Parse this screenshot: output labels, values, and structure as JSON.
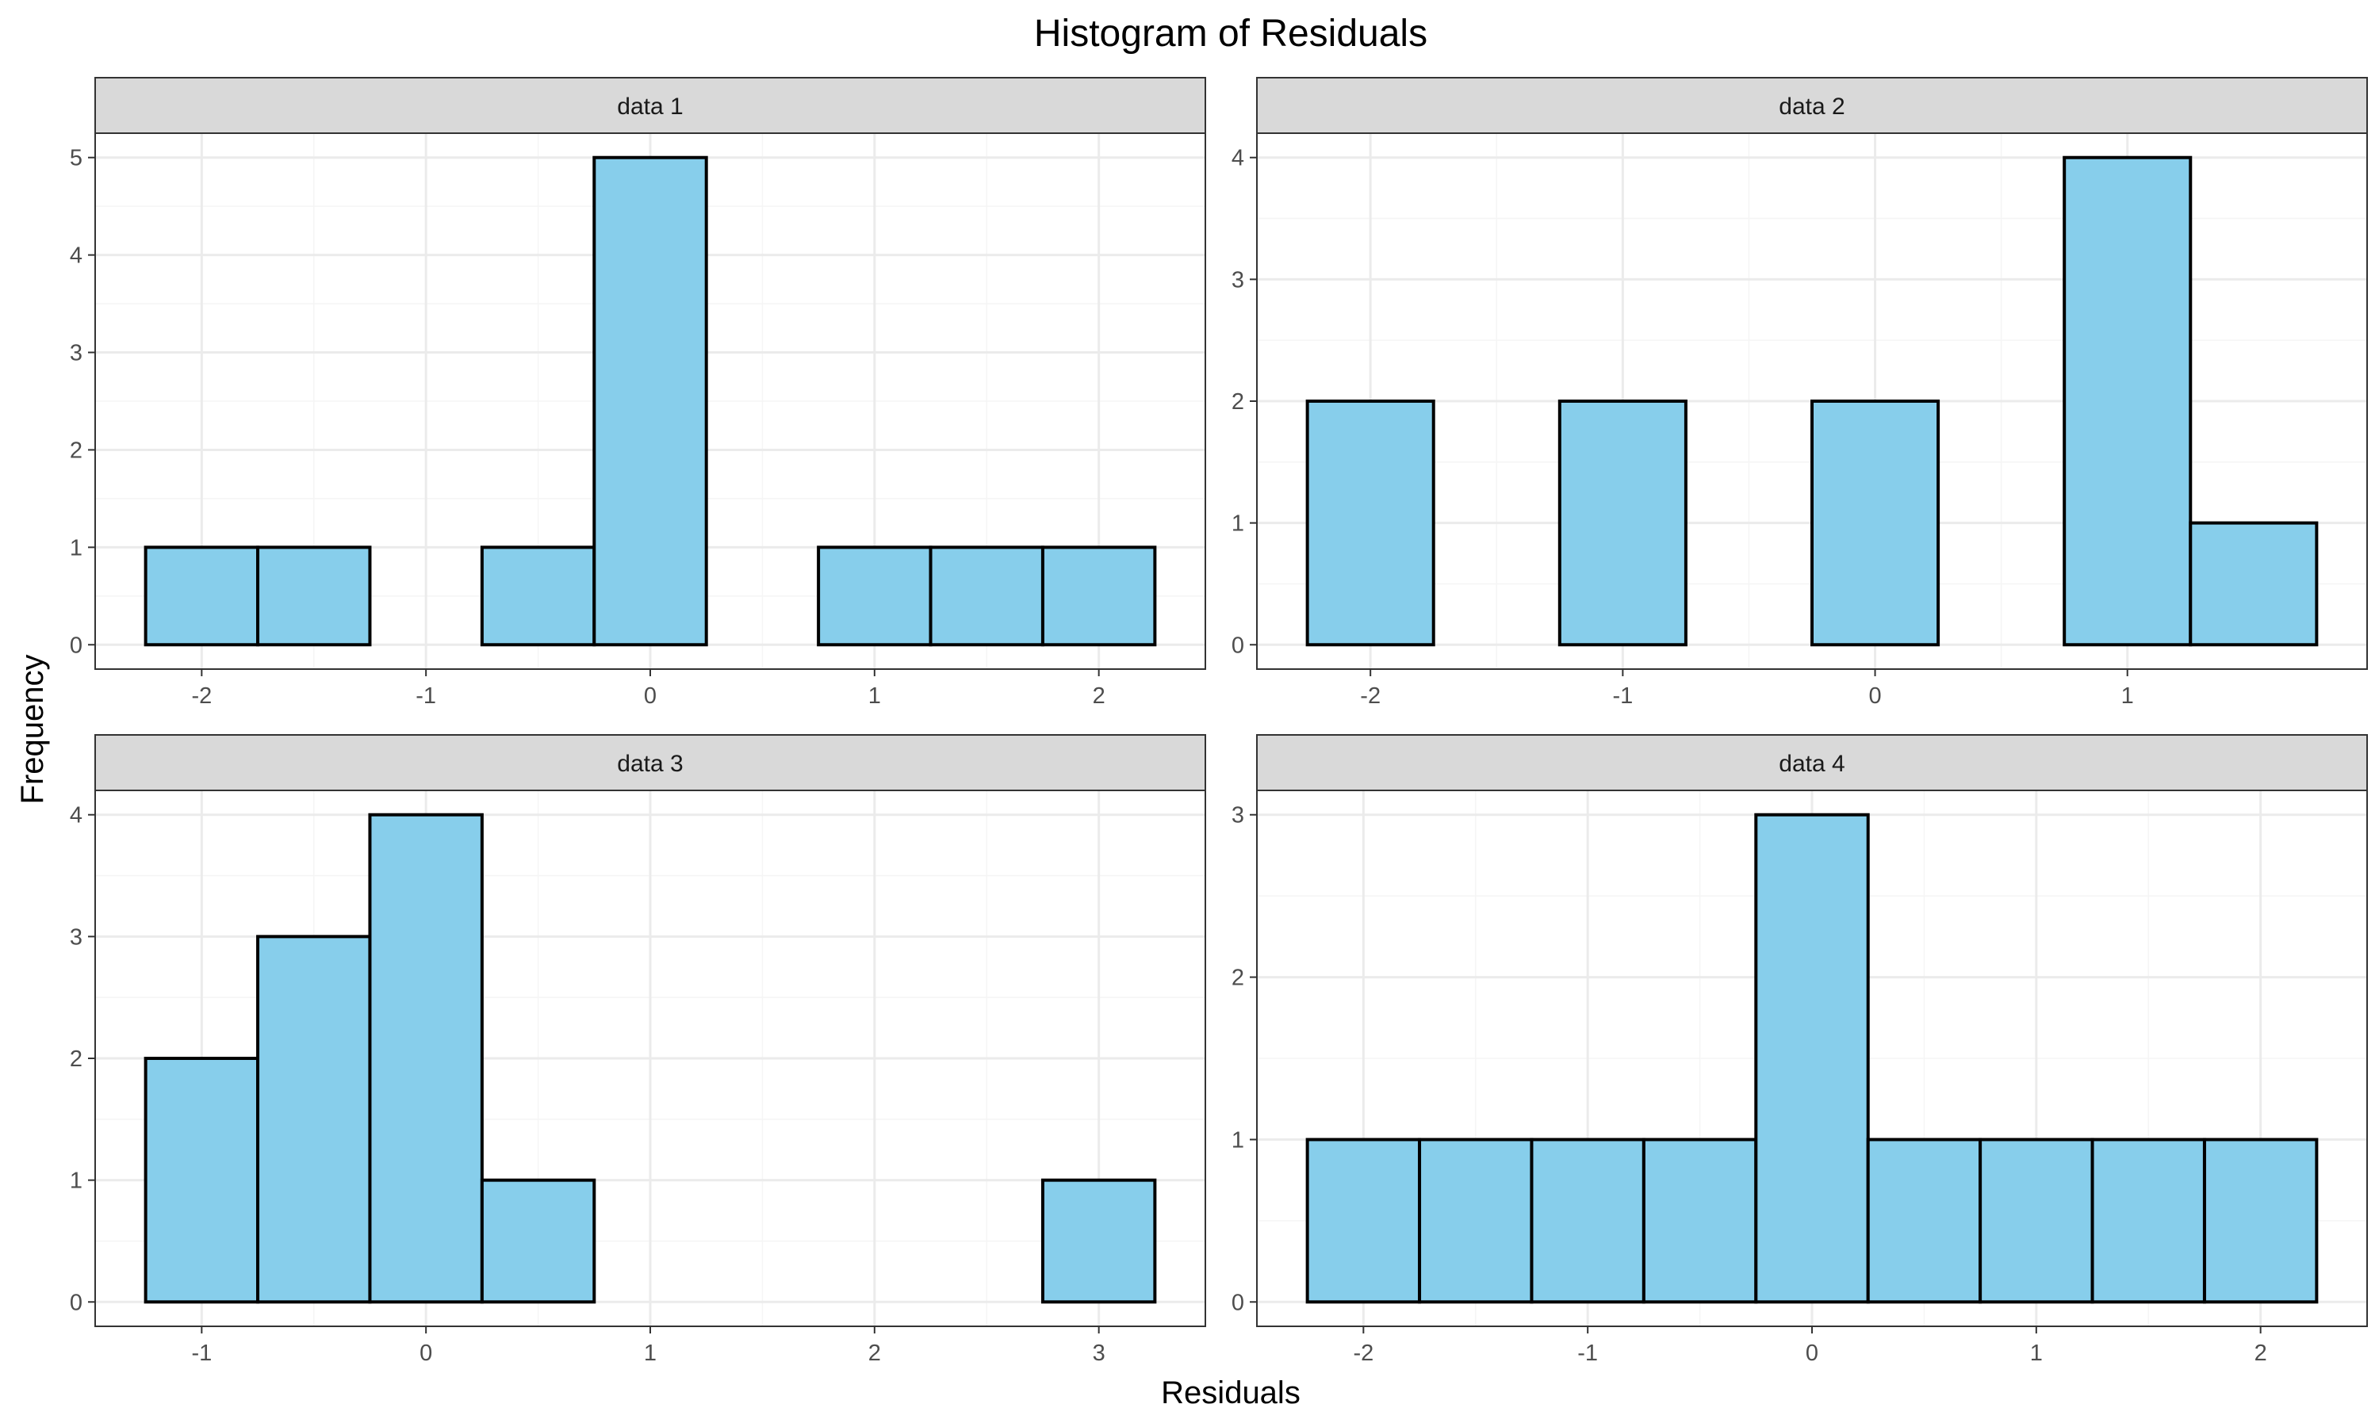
{
  "figure": {
    "title": "Histogram of Residuals",
    "xlabel": "Residuals",
    "ylabel": "Frequency",
    "colors": {
      "bar_fill": "#87CEEB",
      "bar_stroke": "#000000",
      "strip_fill": "#D9D9D9",
      "grid_major": "#EBEBEB",
      "grid_minor": "#F5F5F5",
      "panel_border": "#333333",
      "tick_text": "#4D4D4D"
    }
  },
  "chart_data": [
    {
      "type": "bar",
      "panel": "data 1",
      "bin_width": 0.5,
      "bins": [
        {
          "x0": -2.25,
          "x1": -1.75,
          "count": 1
        },
        {
          "x0": -1.75,
          "x1": -1.25,
          "count": 1
        },
        {
          "x0": -1.25,
          "x1": -0.75,
          "count": 0
        },
        {
          "x0": -0.75,
          "x1": -0.25,
          "count": 1
        },
        {
          "x0": -0.25,
          "x1": 0.25,
          "count": 5
        },
        {
          "x0": 0.25,
          "x1": 0.75,
          "count": 0
        },
        {
          "x0": 0.75,
          "x1": 1.25,
          "count": 1
        },
        {
          "x0": 1.25,
          "x1": 1.75,
          "count": 1
        },
        {
          "x0": 1.75,
          "x1": 2.25,
          "count": 1
        }
      ],
      "xlim": [
        -2.475,
        2.475
      ],
      "ylim": [
        -0.25,
        5.25
      ],
      "x_ticks": [
        -2,
        -1,
        0,
        1,
        2
      ],
      "x_tick_labels": [
        "-2",
        "-1",
        "0",
        "1",
        "2"
      ],
      "y_ticks": [
        0,
        1,
        2,
        3,
        4,
        5
      ],
      "y_tick_labels": [
        "0",
        "1",
        "2",
        "3",
        "4",
        "5"
      ],
      "grid": true
    },
    {
      "type": "bar",
      "panel": "data 2",
      "bin_width": 0.5,
      "bins": [
        {
          "x0": -2.25,
          "x1": -1.75,
          "count": 2
        },
        {
          "x0": -1.75,
          "x1": -1.25,
          "count": 0
        },
        {
          "x0": -1.25,
          "x1": -0.75,
          "count": 2
        },
        {
          "x0": -0.75,
          "x1": -0.25,
          "count": 0
        },
        {
          "x0": -0.25,
          "x1": 0.25,
          "count": 2
        },
        {
          "x0": 0.25,
          "x1": 0.75,
          "count": 0
        },
        {
          "x0": 0.75,
          "x1": 1.25,
          "count": 4
        },
        {
          "x0": 1.25,
          "x1": 1.75,
          "count": 1
        }
      ],
      "xlim": [
        -2.45,
        1.95
      ],
      "ylim": [
        -0.2,
        4.2
      ],
      "x_ticks": [
        -2,
        -1,
        0,
        1
      ],
      "x_tick_labels": [
        "-2",
        "-1",
        "0",
        "1"
      ],
      "y_ticks": [
        0,
        1,
        2,
        3,
        4
      ],
      "y_tick_labels": [
        "0",
        "1",
        "2",
        "3",
        "4"
      ],
      "grid": true
    },
    {
      "type": "bar",
      "panel": "data 3",
      "bin_width": 0.5,
      "bins": [
        {
          "x0": -1.25,
          "x1": -0.75,
          "count": 2
        },
        {
          "x0": -0.75,
          "x1": -0.25,
          "count": 3
        },
        {
          "x0": -0.25,
          "x1": 0.25,
          "count": 4
        },
        {
          "x0": 0.25,
          "x1": 0.75,
          "count": 1
        },
        {
          "x0": 0.75,
          "x1": 1.25,
          "count": 0
        },
        {
          "x0": 1.25,
          "x1": 1.75,
          "count": 0
        },
        {
          "x0": 1.75,
          "x1": 2.25,
          "count": 0
        },
        {
          "x0": 2.25,
          "x1": 2.75,
          "count": 0
        },
        {
          "x0": 2.75,
          "x1": 3.25,
          "count": 1
        }
      ],
      "xlim": [
        -1.475,
        3.475
      ],
      "ylim": [
        -0.2,
        4.2
      ],
      "x_ticks": [
        -1,
        0,
        1,
        2,
        3
      ],
      "x_tick_labels": [
        "-1",
        "0",
        "1",
        "2",
        "3"
      ],
      "y_ticks": [
        0,
        1,
        2,
        3,
        4
      ],
      "y_tick_labels": [
        "0",
        "1",
        "2",
        "3",
        "4"
      ],
      "grid": true
    },
    {
      "type": "bar",
      "panel": "data 4",
      "bin_width": 0.5,
      "bins": [
        {
          "x0": -2.25,
          "x1": -1.75,
          "count": 1
        },
        {
          "x0": -1.75,
          "x1": -1.25,
          "count": 1
        },
        {
          "x0": -1.25,
          "x1": -0.75,
          "count": 1
        },
        {
          "x0": -0.75,
          "x1": -0.25,
          "count": 1
        },
        {
          "x0": -0.25,
          "x1": 0.25,
          "count": 3
        },
        {
          "x0": 0.25,
          "x1": 0.75,
          "count": 1
        },
        {
          "x0": 0.75,
          "x1": 1.25,
          "count": 1
        },
        {
          "x0": 1.25,
          "x1": 1.75,
          "count": 1
        },
        {
          "x0": 1.75,
          "x1": 2.25,
          "count": 1
        }
      ],
      "xlim": [
        -2.475,
        2.475
      ],
      "ylim": [
        -0.15,
        3.15
      ],
      "x_ticks": [
        -2,
        -1,
        0,
        1,
        2
      ],
      "x_tick_labels": [
        "-2",
        "-1",
        "0",
        "1",
        "2"
      ],
      "y_ticks": [
        0,
        1,
        2,
        3
      ],
      "y_tick_labels": [
        "0",
        "1",
        "2",
        "3"
      ],
      "grid": true
    }
  ]
}
